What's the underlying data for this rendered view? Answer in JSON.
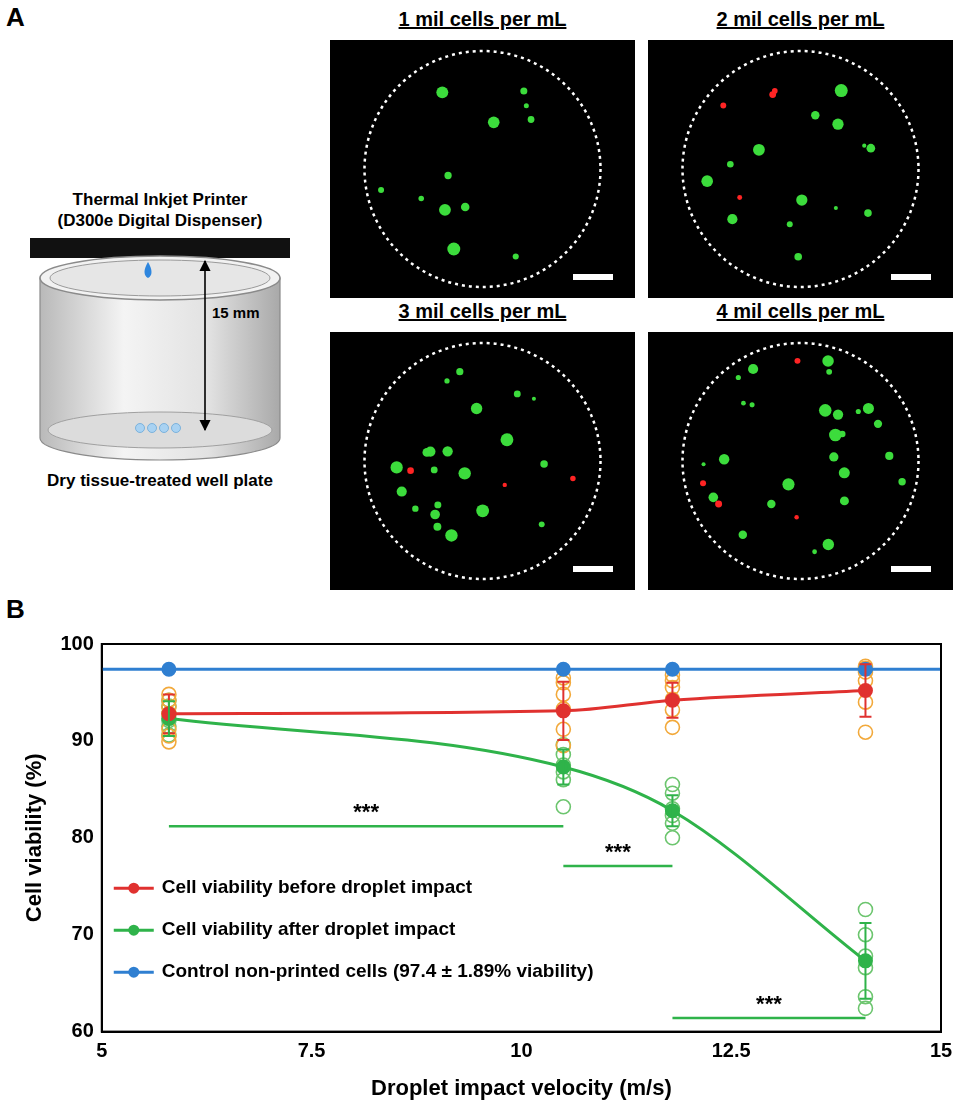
{
  "panel_a": {
    "letter": "A",
    "printer_label": "Thermal Inkjet Printer (D300e Digital Dispenser)",
    "distance_label": "15 mm",
    "plate_label": "Dry tissue-treated well plate",
    "images": [
      "1 mil cells per mL",
      "2 mil cells per mL",
      "3 mil cells per mL",
      "4 mil cells per mL"
    ]
  },
  "chart_data": {
    "panel_letter": "B",
    "type": "line",
    "x_label": "Droplet impact velocity (m/s)",
    "y_label": "Cell viability (%)",
    "xlim": [
      5,
      15
    ],
    "xticks": [
      5,
      7.5,
      10,
      12.5,
      15
    ],
    "ylim": [
      60,
      100
    ],
    "yticks": [
      60,
      70,
      80,
      90,
      100
    ],
    "grid": false,
    "legend": "lower left",
    "series": [
      {
        "name": "Cell viability before droplet impact",
        "color": "#e0312f",
        "marker": "circle",
        "line_style": "solid",
        "x": [
          5.8,
          10.5,
          11.8,
          14.1
        ],
        "values": [
          92.8,
          93.1,
          94.2,
          95.2
        ],
        "errors": [
          2.0,
          3.0,
          1.8,
          2.7
        ],
        "replicates": [
          [
            89.9,
            90.5,
            91.2,
            92.8,
            93.5,
            94.2,
            94.8
          ],
          [
            89.5,
            91.2,
            93.3,
            94.8,
            96.0,
            96.5
          ],
          [
            91.4,
            93.2,
            94.3,
            95.5,
            96.2,
            96.8
          ],
          [
            90.9,
            94.0,
            96.2,
            97.1,
            97.5,
            97.7
          ]
        ]
      },
      {
        "name": "Cell viability after droplet impact",
        "color": "#2fb34a",
        "marker": "circle",
        "line_style": "solid",
        "x": [
          5.8,
          10.5,
          11.8,
          14.1
        ],
        "values": [
          92.3,
          87.3,
          82.8,
          67.3
        ],
        "errors": [
          1.8,
          1.8,
          1.6,
          3.9
        ],
        "replicates": [
          [
            90.6,
            91.5,
            92.1,
            92.8,
            93.6,
            94.2
          ],
          [
            83.2,
            86.0,
            86.8,
            87.5,
            88.6,
            89.6
          ],
          [
            80.0,
            81.5,
            82.3,
            83.0,
            84.6,
            85.5
          ],
          [
            62.4,
            63.6,
            66.6,
            67.8,
            70.0,
            72.6
          ]
        ]
      },
      {
        "name": "Control non-printed cells (97.4 ± 1.89% viability)",
        "color": "#2f7fd1",
        "marker": "circle",
        "line_style": "solid",
        "x": [
          5,
          5.8,
          10.5,
          11.8,
          14.1,
          15
        ],
        "values": [
          97.4,
          97.4,
          97.4,
          97.4,
          97.4,
          97.4
        ]
      }
    ],
    "annotations": [
      {
        "text": "***",
        "x": [
          5.8,
          10.5
        ],
        "y": 81.2
      },
      {
        "text": "***",
        "x": [
          10.5,
          11.8
        ],
        "y": 77.1
      },
      {
        "text": "***",
        "x": [
          11.8,
          14.1
        ],
        "y": 61.4
      }
    ]
  }
}
